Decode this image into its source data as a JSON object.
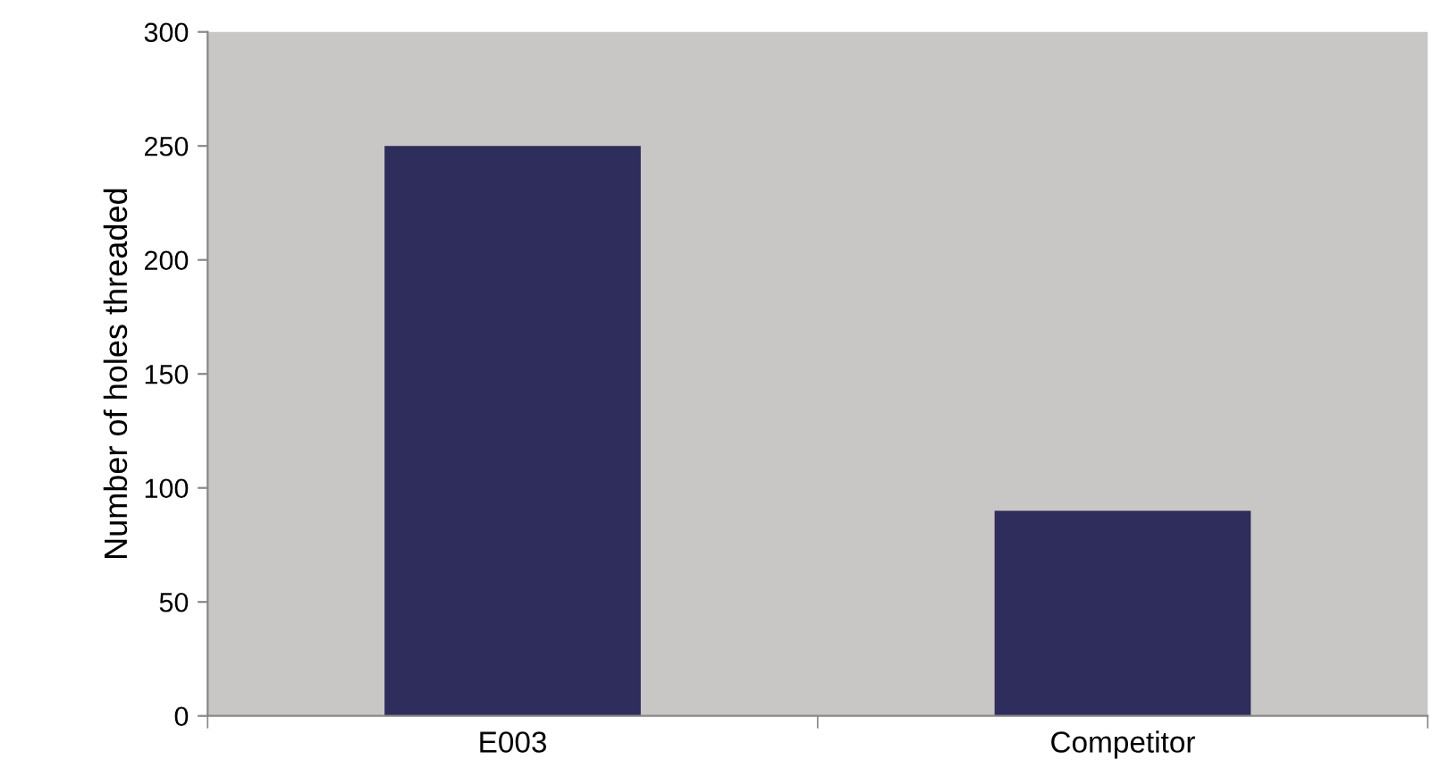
{
  "chart_data": {
    "type": "bar",
    "ylabel": "Number of holes threaded",
    "categories": [
      "E003",
      "Competitor"
    ],
    "values": [
      250,
      90
    ],
    "color": "#2e2d5c",
    "ylim": [
      0,
      300
    ],
    "yticks": [
      0,
      50,
      100,
      150,
      200,
      250,
      300
    ],
    "grid": false,
    "legend": false
  }
}
